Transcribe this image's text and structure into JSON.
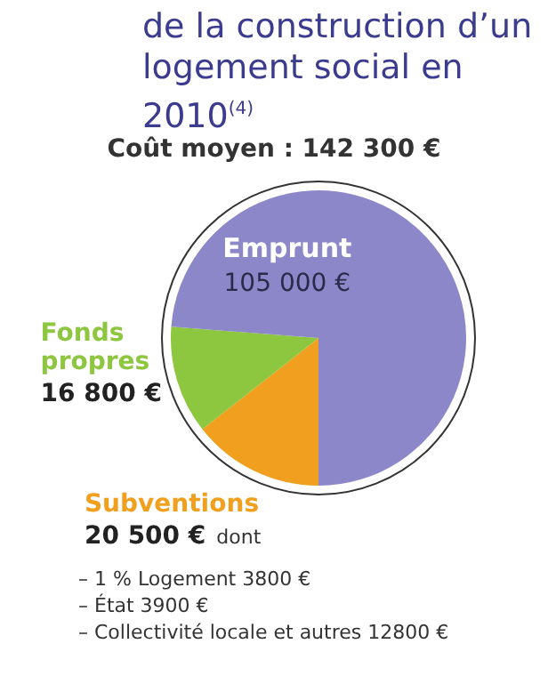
{
  "chart_data": {
    "type": "pie",
    "title": "de la construction d’un logement social en 2010$^{(4)}$",
    "subtitle": "Coût moyen : 142 300 €",
    "categories": [
      "Subventions",
      "Fonds propres",
      "Emprunt"
    ],
    "values": [
      20500,
      16800,
      105000
    ],
    "colors": [
      "#f0a01e",
      "#8dc63f",
      "#8c87c8"
    ],
    "value_labels": [
      "20 500 €",
      "16 800 €",
      "105 000 €"
    ],
    "legend": false,
    "annotations": [
      "dont",
      "– 1 % Logement 3800 €",
      "– État 3900 €",
      "– Collectivité locale et autres 12800 €"
    ]
  }
}
